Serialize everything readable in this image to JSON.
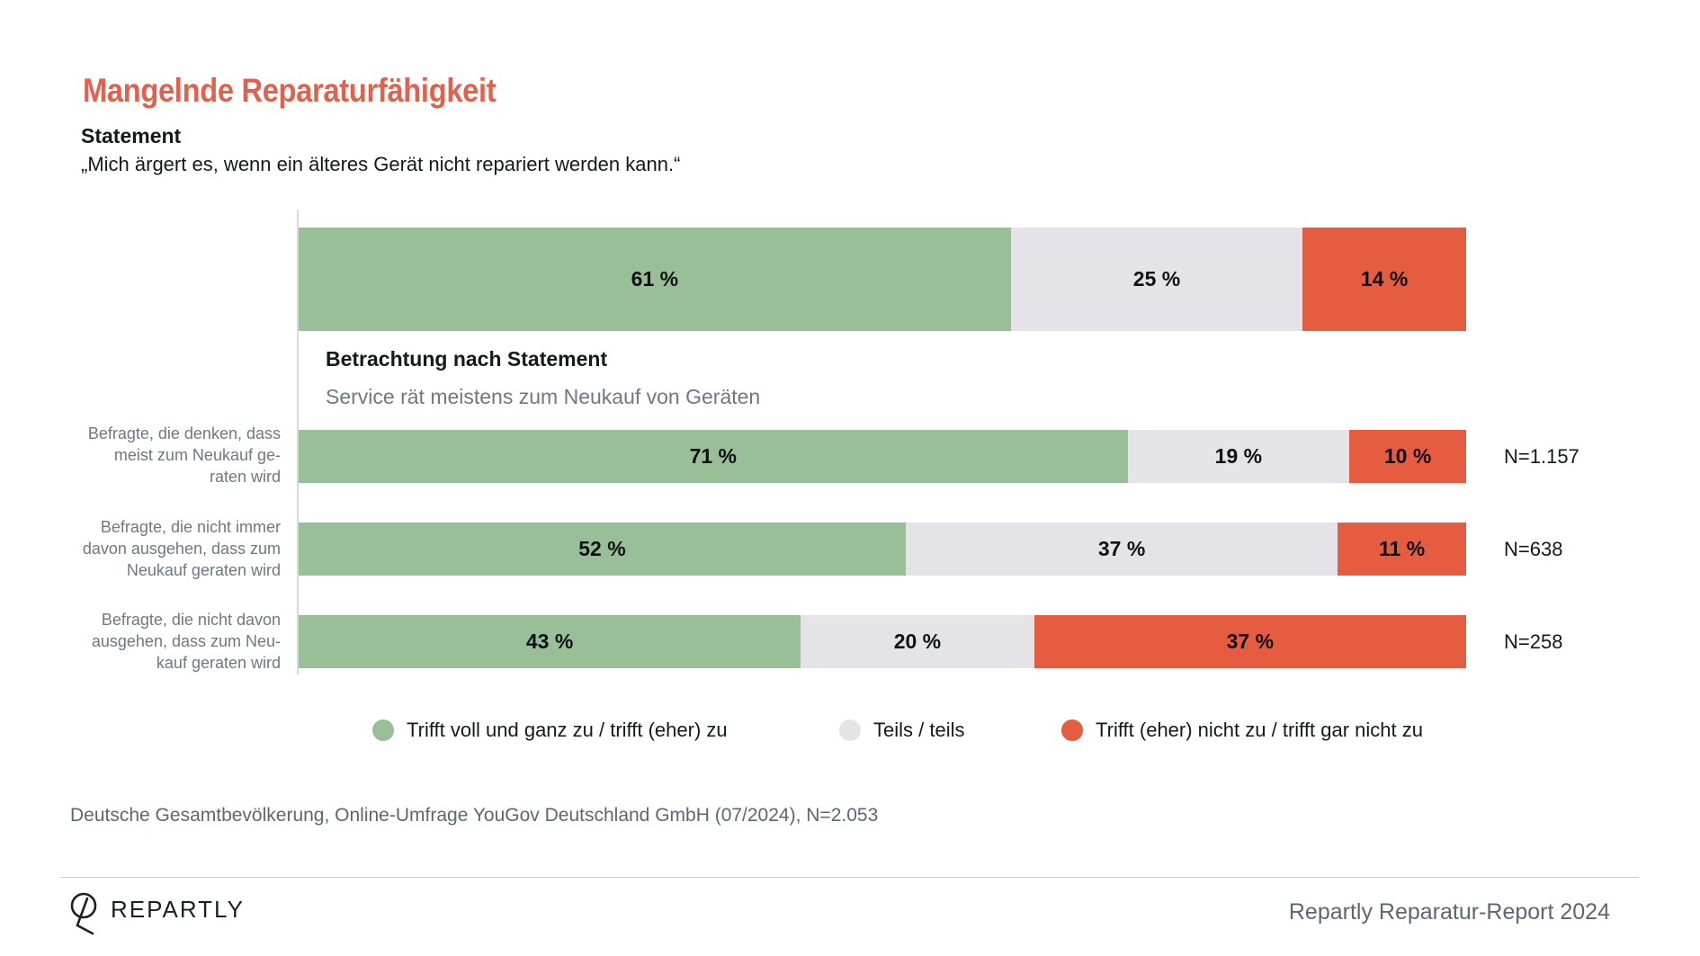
{
  "header": {
    "title": "Mangelnde Reparaturfähigkeit",
    "statement_label": "Statement",
    "quote": "„Mich ärgert es, wenn ein älteres Gerät nicht repariert werden kann.“"
  },
  "section": {
    "heading": "Betrachtung nach Statement",
    "subheading": "Service rät meistens zum Neukauf von Geräten"
  },
  "legend": [
    {
      "label": "Trifft voll und ganz zu / trifft (eher) zu",
      "color": "#99bf99"
    },
    {
      "label": "Teils / teils",
      "color": "#e4e4e8"
    },
    {
      "label": "Trifft (eher) nicht zu / trifft gar nicht zu",
      "color": "#e65c41"
    }
  ],
  "overview_bar": {
    "segments": [
      {
        "value": 61,
        "label": "61 %"
      },
      {
        "value": 25,
        "label": "25 %"
      },
      {
        "value": 14,
        "label": "14 %"
      }
    ]
  },
  "rows": [
    {
      "label": "Befragte, die denken, dass\nmeist zum Neukauf ge-\nraten wird",
      "n_label": "N=1.157",
      "segments": [
        {
          "value": 71,
          "label": "71 %"
        },
        {
          "value": 19,
          "label": "19 %"
        },
        {
          "value": 10,
          "label": "10 %"
        }
      ]
    },
    {
      "label": "Befragte, die nicht immer\ndavon ausgehen, dass zum\nNeukauf geraten wird",
      "n_label": "N=638",
      "segments": [
        {
          "value": 52,
          "label": "52 %"
        },
        {
          "value": 37,
          "label": "37 %"
        },
        {
          "value": 11,
          "label": "11 %"
        }
      ]
    },
    {
      "label": "Befragte, die nicht davon\nausgehen, dass zum Neu-\nkauf geraten wird",
      "n_label": "N=258",
      "segments": [
        {
          "value": 43,
          "label": "43 %"
        },
        {
          "value": 20,
          "label": "20 %"
        },
        {
          "value": 37,
          "label": "37 %"
        }
      ]
    }
  ],
  "source": "Deutsche Gesamtbevölkerung, Online-Umfrage YouGov Deutschland GmbH (07/2024), N=2.053",
  "footer": {
    "brand": "REPARTLY",
    "report": "Repartly Reparatur-Report 2024"
  },
  "colors": {
    "title": "#e2614c",
    "agree": "#99bf99",
    "neutral": "#e4e4e8",
    "disagree": "#e65c41",
    "axis": "#d9d9dd",
    "muted_text": "#6e7885"
  },
  "chart_data": {
    "type": "bar",
    "stacked": true,
    "orientation": "horizontal",
    "unit": "%",
    "x_range": [
      0,
      100
    ],
    "grid": false,
    "title": "Mangelnde Reparaturfähigkeit",
    "statement": "„Mich ärgert es, wenn ein älteres Gerät nicht repariert werden kann.“",
    "breakdown_heading": "Betrachtung nach Statement",
    "breakdown_subheading": "Service rät meistens zum Neukauf von Geräten",
    "legend_position": "bottom",
    "series_names": [
      "Trifft voll und ganz zu / trifft (eher) zu",
      "Teils / teils",
      "Trifft (eher) nicht zu / trifft gar nicht zu"
    ],
    "bars": [
      {
        "category": "",
        "values": [
          61,
          25,
          14
        ],
        "n_label": ""
      },
      {
        "category": "Befragte, die denken, dass meist zum Neukauf geraten wird",
        "values": [
          71,
          19,
          10
        ],
        "n_label": "N=1.157"
      },
      {
        "category": "Befragte, die nicht immer davon ausgehen, dass zum Neukauf geraten wird",
        "values": [
          52,
          37,
          11
        ],
        "n_label": "N=638"
      },
      {
        "category": "Befragte, die nicht davon ausgehen, dass zum Neukauf geraten wird",
        "values": [
          43,
          20,
          37
        ],
        "n_label": "N=258"
      }
    ],
    "source": "Deutsche Gesamtbevölkerung, Online-Umfrage YouGov Deutschland GmbH (07/2024), N=2.053"
  }
}
